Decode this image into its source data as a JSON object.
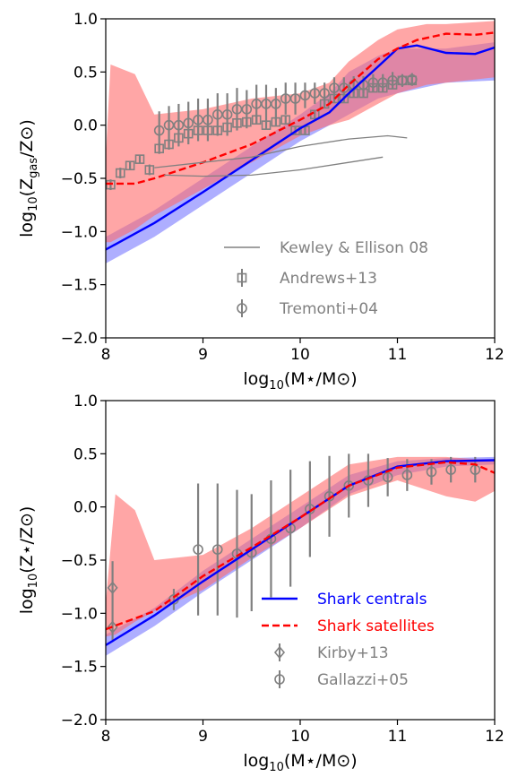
{
  "chart_data": [
    {
      "type": "line",
      "panel": "top",
      "xlabel": "log10(M⋆/M⊙)",
      "ylabel": "log10(Zgas/Z⊙)",
      "xlim": [
        8,
        12
      ],
      "ylim": [
        -2.0,
        1.0
      ],
      "x_ticks": [
        "8",
        "9",
        "10",
        "11",
        "12"
      ],
      "y_ticks": [
        "−2.0",
        "−1.5",
        "−1.0",
        "−0.5",
        "0.0",
        "0.5",
        "1.0"
      ],
      "grid": false,
      "legend_placement": "lower-right",
      "legend": [
        {
          "label": "Kewley & Ellison 08",
          "marker": "line",
          "color": "#808080"
        },
        {
          "label": "Andrews+13",
          "marker": "square-errorbar",
          "color": "#808080"
        },
        {
          "label": "Tremonti+04",
          "marker": "circle-errorbar",
          "color": "#808080"
        }
      ],
      "bands": [
        {
          "color": "#6b6bff",
          "opacity": 0.55,
          "x": [
            8.0,
            8.5,
            9.0,
            9.5,
            10.0,
            10.3,
            10.5,
            10.8,
            11.0,
            11.5,
            12.0
          ],
          "upper": [
            -1.05,
            -0.8,
            -0.5,
            -0.2,
            0.1,
            0.3,
            0.5,
            0.65,
            0.72,
            0.72,
            0.78
          ],
          "lower": [
            -1.3,
            -1.05,
            -0.75,
            -0.45,
            -0.15,
            0.0,
            0.1,
            0.25,
            0.3,
            0.4,
            0.42
          ]
        },
        {
          "color": "#ff6b6b",
          "opacity": 0.6,
          "x": [
            8.0,
            8.05,
            8.3,
            8.5,
            9.0,
            9.5,
            10.0,
            10.3,
            10.5,
            10.8,
            11.0,
            11.3,
            11.5,
            12.0
          ],
          "upper": [
            -0.3,
            0.57,
            0.48,
            0.1,
            0.15,
            0.25,
            0.3,
            0.4,
            0.6,
            0.8,
            0.9,
            0.95,
            0.95,
            0.98
          ],
          "lower": [
            -1.1,
            -1.1,
            -0.98,
            -0.85,
            -0.6,
            -0.35,
            -0.1,
            0.0,
            0.05,
            0.2,
            0.3,
            0.38,
            0.4,
            0.45
          ]
        }
      ],
      "series": [
        {
          "name": "Shark centrals",
          "color": "#0000ff",
          "style": "solid",
          "x": [
            8.0,
            8.5,
            9.0,
            9.5,
            10.0,
            10.3,
            10.5,
            10.8,
            11.0,
            11.2,
            11.5,
            11.8,
            12.0
          ],
          "y": [
            -1.17,
            -0.92,
            -0.63,
            -0.33,
            -0.03,
            0.12,
            0.3,
            0.55,
            0.72,
            0.75,
            0.68,
            0.67,
            0.73
          ]
        },
        {
          "name": "Shark satellites",
          "color": "#ff0000",
          "style": "dashed",
          "x": [
            8.0,
            8.3,
            8.5,
            9.0,
            9.5,
            10.0,
            10.3,
            10.5,
            10.8,
            11.0,
            11.2,
            11.5,
            11.8,
            12.0
          ],
          "y": [
            -0.55,
            -0.55,
            -0.5,
            -0.35,
            -0.18,
            0.05,
            0.2,
            0.38,
            0.62,
            0.72,
            0.8,
            0.86,
            0.85,
            0.87
          ]
        },
        {
          "name": "Kewley & Ellison 08 (upper)",
          "color": "#808080",
          "style": "thin",
          "x": [
            8.5,
            9.0,
            9.5,
            10.0,
            10.5,
            10.9,
            11.1
          ],
          "y": [
            -0.4,
            -0.35,
            -0.3,
            -0.2,
            -0.13,
            -0.1,
            -0.12
          ]
        },
        {
          "name": "Kewley & Ellison 08 (lower)",
          "color": "#808080",
          "style": "thin",
          "x": [
            8.6,
            9.0,
            9.5,
            10.0,
            10.5,
            10.85
          ],
          "y": [
            -0.47,
            -0.48,
            -0.47,
            -0.42,
            -0.35,
            -0.3
          ]
        }
      ],
      "andrews13": {
        "x": [
          8.05,
          8.15,
          8.25,
          8.35,
          8.45,
          8.55,
          8.65,
          8.75,
          8.85,
          8.95,
          9.05,
          9.15,
          9.25,
          9.35,
          9.45,
          9.55,
          9.65,
          9.75,
          9.85,
          9.95,
          10.05,
          10.15,
          10.25,
          10.35,
          10.45,
          10.55,
          10.65,
          10.75,
          10.85,
          10.95,
          11.05,
          11.15
        ],
        "y": [
          -0.56,
          -0.45,
          -0.38,
          -0.32,
          -0.42,
          -0.22,
          -0.18,
          -0.12,
          -0.08,
          -0.05,
          -0.05,
          -0.05,
          -0.02,
          0.02,
          0.03,
          0.05,
          0.0,
          0.03,
          0.05,
          -0.05,
          -0.05,
          0.1,
          0.2,
          0.25,
          0.25,
          0.3,
          0.3,
          0.35,
          0.35,
          0.38,
          0.42,
          0.42
        ],
        "err": [
          0.05,
          0.05,
          0.04,
          0.04,
          0.05,
          0.05,
          0.05,
          0.04,
          0.04,
          0.04,
          0.04,
          0.04,
          0.04,
          0.04,
          0.04,
          0.04,
          0.04,
          0.04,
          0.04,
          0.04,
          0.04,
          0.04,
          0.04,
          0.04,
          0.04,
          0.04,
          0.04,
          0.04,
          0.04,
          0.04,
          0.04,
          0.04
        ]
      },
      "tremonti04": {
        "x": [
          8.55,
          8.65,
          8.75,
          8.85,
          8.95,
          9.05,
          9.15,
          9.25,
          9.35,
          9.45,
          9.55,
          9.65,
          9.75,
          9.85,
          9.95,
          10.05,
          10.15,
          10.25,
          10.35,
          10.45,
          10.55,
          10.65,
          10.75,
          10.85,
          10.95,
          11.05,
          11.15
        ],
        "y": [
          -0.05,
          0.0,
          0.0,
          0.02,
          0.05,
          0.05,
          0.1,
          0.1,
          0.15,
          0.15,
          0.2,
          0.2,
          0.2,
          0.25,
          0.25,
          0.28,
          0.3,
          0.3,
          0.35,
          0.35,
          0.38,
          0.38,
          0.4,
          0.4,
          0.42,
          0.42,
          0.43
        ],
        "err": [
          0.18,
          0.18,
          0.2,
          0.2,
          0.2,
          0.2,
          0.2,
          0.2,
          0.2,
          0.18,
          0.18,
          0.18,
          0.15,
          0.15,
          0.15,
          0.12,
          0.1,
          0.1,
          0.1,
          0.1,
          0.08,
          0.08,
          0.08,
          0.08,
          0.08,
          0.06,
          0.06
        ]
      }
    },
    {
      "type": "line",
      "panel": "bottom",
      "xlabel": "log10(M⋆/M⊙)",
      "ylabel": "log10(Z⋆/Z⊙)",
      "xlim": [
        8,
        12
      ],
      "ylim": [
        -2.0,
        1.0
      ],
      "x_ticks": [
        "8",
        "9",
        "10",
        "11",
        "12"
      ],
      "y_ticks": [
        "−2.0",
        "−1.5",
        "−1.0",
        "−0.5",
        "0.0",
        "0.5",
        "1.0"
      ],
      "grid": false,
      "legend_placement": "lower-right",
      "legend": [
        {
          "label": "Shark centrals",
          "marker": "line",
          "color": "#0000ff"
        },
        {
          "label": "Shark satellites",
          "marker": "dashed",
          "color": "#ff0000"
        },
        {
          "label": "Kirby+13",
          "marker": "diamond-errorbar",
          "color": "#808080"
        },
        {
          "label": "Gallazzi+05",
          "marker": "circle-errorbar",
          "color": "#808080"
        }
      ],
      "bands": [
        {
          "color": "#6b6bff",
          "opacity": 0.55,
          "x": [
            8.0,
            8.5,
            9.0,
            9.5,
            10.0,
            10.5,
            11.0,
            11.5,
            12.0
          ],
          "upper": [
            -1.2,
            -0.95,
            -0.6,
            -0.3,
            0.0,
            0.3,
            0.43,
            0.46,
            0.47
          ],
          "lower": [
            -1.4,
            -1.12,
            -0.8,
            -0.5,
            -0.2,
            0.12,
            0.3,
            0.38,
            0.4
          ]
        },
        {
          "color": "#ff6b6b",
          "opacity": 0.6,
          "x": [
            8.0,
            8.1,
            8.3,
            8.5,
            9.0,
            9.5,
            10.0,
            10.5,
            11.0,
            11.5,
            11.8,
            12.0
          ],
          "upper": [
            -0.9,
            0.12,
            -0.03,
            -0.5,
            -0.45,
            -0.2,
            0.1,
            0.4,
            0.47,
            0.47,
            0.45,
            0.45
          ],
          "lower": [
            -1.22,
            -1.2,
            -1.08,
            -0.98,
            -0.78,
            -0.48,
            -0.2,
            0.1,
            0.25,
            0.1,
            0.05,
            0.15
          ]
        }
      ],
      "series": [
        {
          "name": "Shark centrals",
          "color": "#0000ff",
          "style": "solid",
          "x": [
            8.0,
            8.5,
            9.0,
            9.5,
            10.0,
            10.5,
            11.0,
            11.5,
            12.0
          ],
          "y": [
            -1.3,
            -1.02,
            -0.7,
            -0.4,
            -0.1,
            0.2,
            0.38,
            0.43,
            0.44
          ]
        },
        {
          "name": "Shark satellites",
          "color": "#ff0000",
          "style": "dashed",
          "x": [
            8.0,
            8.5,
            9.0,
            9.5,
            10.0,
            10.5,
            11.0,
            11.5,
            11.8,
            12.0
          ],
          "y": [
            -1.15,
            -0.98,
            -0.65,
            -0.38,
            -0.1,
            0.2,
            0.37,
            0.42,
            0.4,
            0.32
          ]
        }
      ],
      "kirby13": {
        "x": [
          8.07,
          8.07
        ],
        "y": [
          -0.76,
          -1.13
        ],
        "err": [
          0.25,
          0.12
        ]
      },
      "gallazzi05": {
        "x": [
          8.7,
          8.95,
          9.15,
          9.35,
          9.5,
          9.7,
          9.9,
          10.1,
          10.3,
          10.5,
          10.7,
          10.9,
          11.1,
          11.35,
          11.55,
          11.8
        ],
        "y": [
          -0.87,
          -0.4,
          -0.4,
          -0.44,
          -0.43,
          -0.3,
          -0.2,
          -0.02,
          0.1,
          0.2,
          0.25,
          0.28,
          0.3,
          0.33,
          0.35,
          0.35
        ],
        "err": [
          0.1,
          0.62,
          0.62,
          0.6,
          0.55,
          0.55,
          0.55,
          0.45,
          0.38,
          0.3,
          0.25,
          0.18,
          0.15,
          0.12,
          0.12,
          0.12
        ]
      }
    }
  ]
}
